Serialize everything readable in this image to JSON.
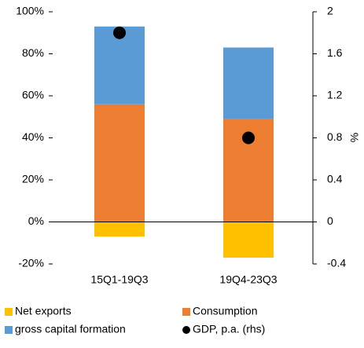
{
  "chart_data": {
    "type": "bar",
    "stacked": true,
    "categories": [
      "15Q1-19Q3",
      "19Q4-23Q3"
    ],
    "series": [
      {
        "name": "Net exports",
        "color": "#ffc000",
        "values": [
          -7,
          -17
        ]
      },
      {
        "name": "Consumption",
        "color": "#ed7d31",
        "values": [
          56,
          49
        ]
      },
      {
        "name": "gross capital formation",
        "color": "#5b9bd5",
        "values": [
          37,
          34
        ]
      },
      {
        "name": "GDP, p.a. (rhs)",
        "color": "#000000",
        "type": "scatter",
        "axis": "y2",
        "values": [
          1.8,
          0.8
        ]
      }
    ],
    "ylim": [
      -20,
      100
    ],
    "yticks": [
      {
        "value": -20,
        "label": "-20%"
      },
      {
        "value": 0,
        "label": "0%"
      },
      {
        "value": 20,
        "label": "20%"
      },
      {
        "value": 40,
        "label": "40%"
      },
      {
        "value": 60,
        "label": "60%"
      },
      {
        "value": 80,
        "label": "80%"
      },
      {
        "value": 100,
        "label": "100%"
      }
    ],
    "y2lim": [
      -0.4,
      2
    ],
    "y2ticks": [
      -0.4,
      0,
      0.4,
      0.8,
      1.2,
      1.6,
      2
    ],
    "y2label": "%",
    "grid": false
  }
}
